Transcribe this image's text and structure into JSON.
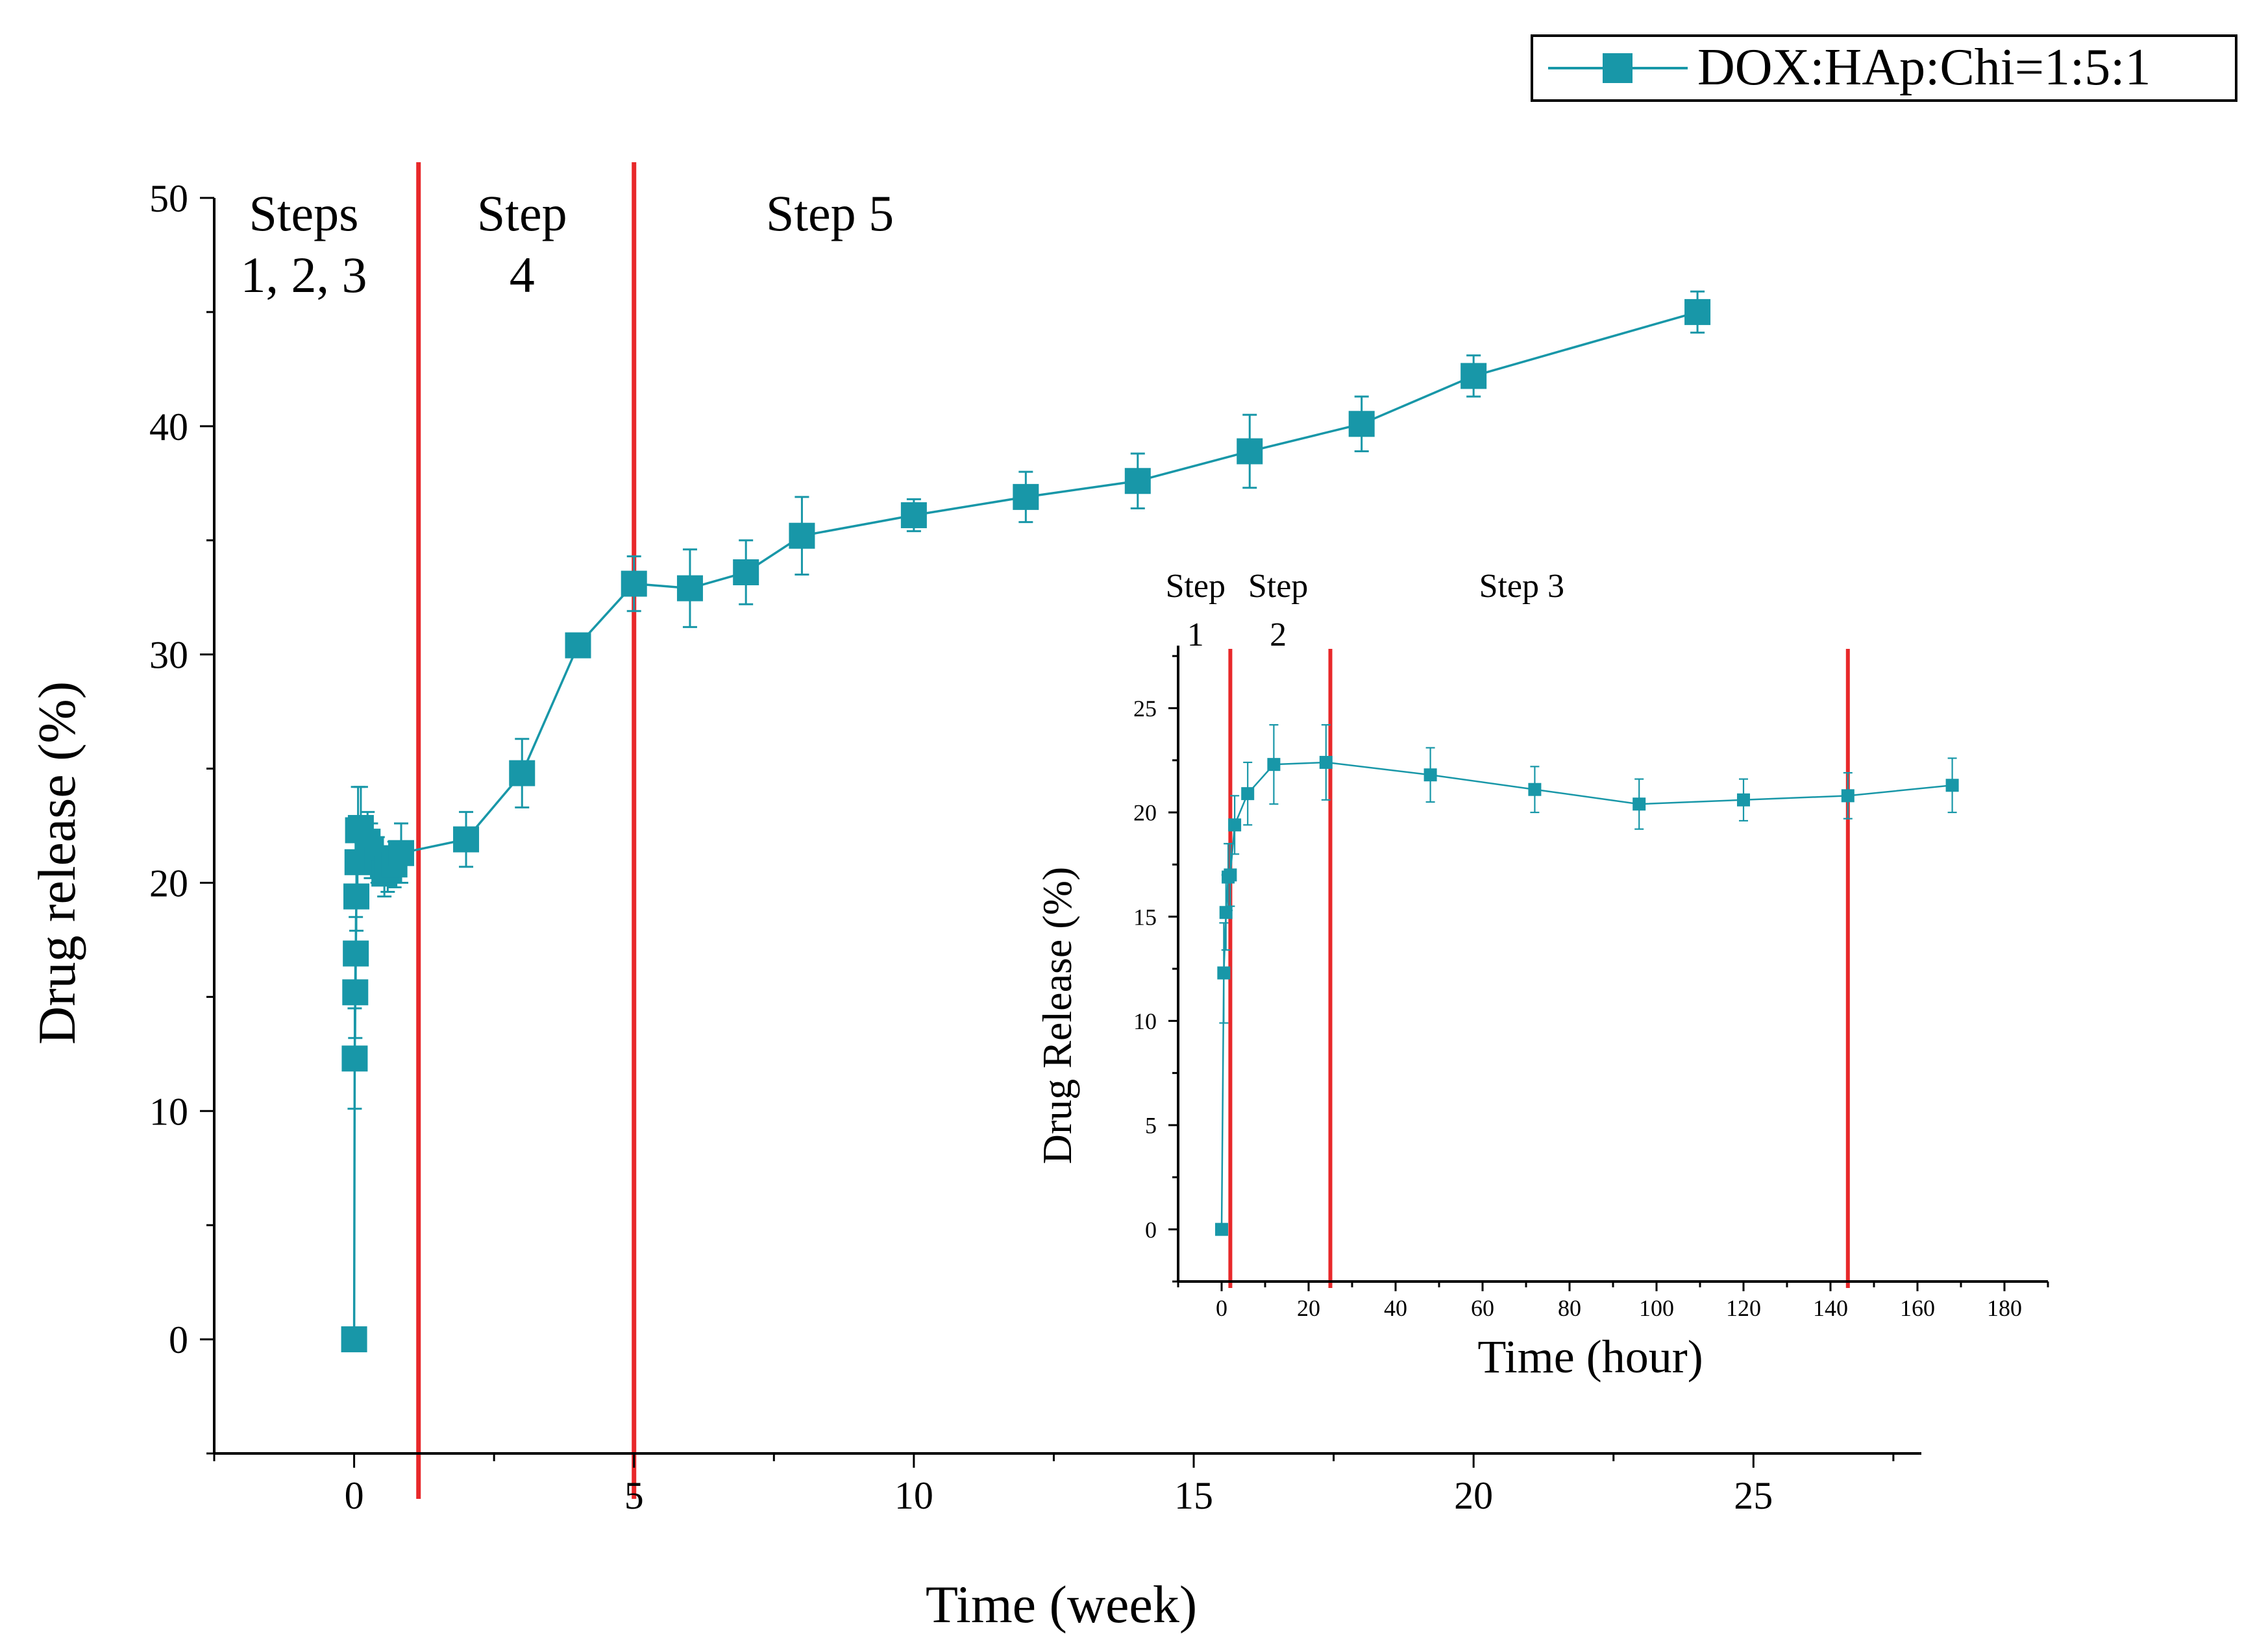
{
  "colors": {
    "series": "#1897A8",
    "divider": "#E8282A",
    "axis": "#000000",
    "background": "#FFFFFF"
  },
  "legend": {
    "label": "DOX:HAp:Chi=1:5:1",
    "placement": "top-right"
  },
  "chart_data": [
    {
      "name": "main",
      "type": "scatter",
      "xlabel": "Time (week)",
      "ylabel": "Drug release (%)",
      "xlim": [
        -2.5,
        28
      ],
      "ylim": [
        -5,
        50
      ],
      "xticks": [
        0,
        5,
        10,
        15,
        20,
        25
      ],
      "yticks": [
        0,
        10,
        20,
        30,
        40,
        50
      ],
      "grid": false,
      "dividers": [
        1.15,
        5.0
      ],
      "step_labels": [
        {
          "lines": [
            "Steps",
            "1, 2, 3"
          ],
          "x": -0.9
        },
        {
          "lines": [
            "Step",
            "4"
          ],
          "x": 3.0
        },
        {
          "lines": [
            "Step 5"
          ],
          "x": 8.5
        }
      ],
      "series": [
        {
          "name": "DOX:HAp:Chi=1:5:1",
          "x": [
            0,
            0.01,
            0.02,
            0.03,
            0.04,
            0.06,
            0.07,
            0.12,
            0.24,
            0.3,
            0.42,
            0.54,
            0.6,
            0.72,
            0.84,
            2,
            3,
            4,
            5,
            6,
            7,
            8,
            10,
            12,
            14,
            16,
            18,
            20,
            24
          ],
          "y": [
            0,
            12.3,
            15.2,
            16.9,
            19.4,
            20.9,
            22.3,
            22.4,
            21.8,
            21.4,
            21.0,
            20.4,
            20.6,
            20.8,
            21.3,
            21.9,
            24.8,
            30.4,
            33.1,
            32.9,
            33.6,
            35.2,
            36.1,
            36.9,
            37.6,
            38.9,
            40.1,
            42.2,
            45.0
          ],
          "error": [
            0,
            2.2,
            2.0,
            1.6,
            1.5,
            1.5,
            1.9,
            1.8,
            1.3,
            1.2,
            1.0,
            1.0,
            1.0,
            1.0,
            1.3,
            1.2,
            1.5,
            0.5,
            1.2,
            1.7,
            1.4,
            1.7,
            0.7,
            1.1,
            1.2,
            1.6,
            1.2,
            0.9,
            0.9
          ]
        }
      ]
    },
    {
      "name": "inset",
      "type": "scatter",
      "xlabel": "Time (hour)",
      "ylabel": "Drug Release (%)",
      "xlim": [
        -10,
        190
      ],
      "ylim": [
        -2.5,
        28
      ],
      "xticks": [
        0,
        20,
        40,
        60,
        80,
        100,
        120,
        140,
        160,
        180
      ],
      "yticks": [
        0,
        5,
        10,
        15,
        20,
        25
      ],
      "grid": false,
      "dividers": [
        2,
        25,
        144
      ],
      "step_labels": [
        {
          "lines": [
            "Step",
            "1"
          ],
          "x": -6
        },
        {
          "lines": [
            "Step",
            "2"
          ],
          "x": 13
        },
        {
          "lines": [
            "Step 3"
          ],
          "x": 69
        }
      ],
      "series": [
        {
          "name": "DOX:HAp:Chi=1:5:1",
          "x": [
            0,
            0.5,
            1,
            1.5,
            2,
            3,
            6,
            12,
            24,
            48,
            72,
            96,
            120,
            144,
            168
          ],
          "y": [
            0,
            12.3,
            15.2,
            16.9,
            17.0,
            19.4,
            20.9,
            22.3,
            22.4,
            21.8,
            21.1,
            20.4,
            20.6,
            20.8,
            21.3
          ],
          "error": [
            0,
            2.4,
            1.8,
            1.6,
            1.5,
            1.4,
            1.5,
            1.9,
            1.8,
            1.3,
            1.1,
            1.2,
            1.0,
            1.1,
            1.3
          ]
        }
      ]
    }
  ]
}
